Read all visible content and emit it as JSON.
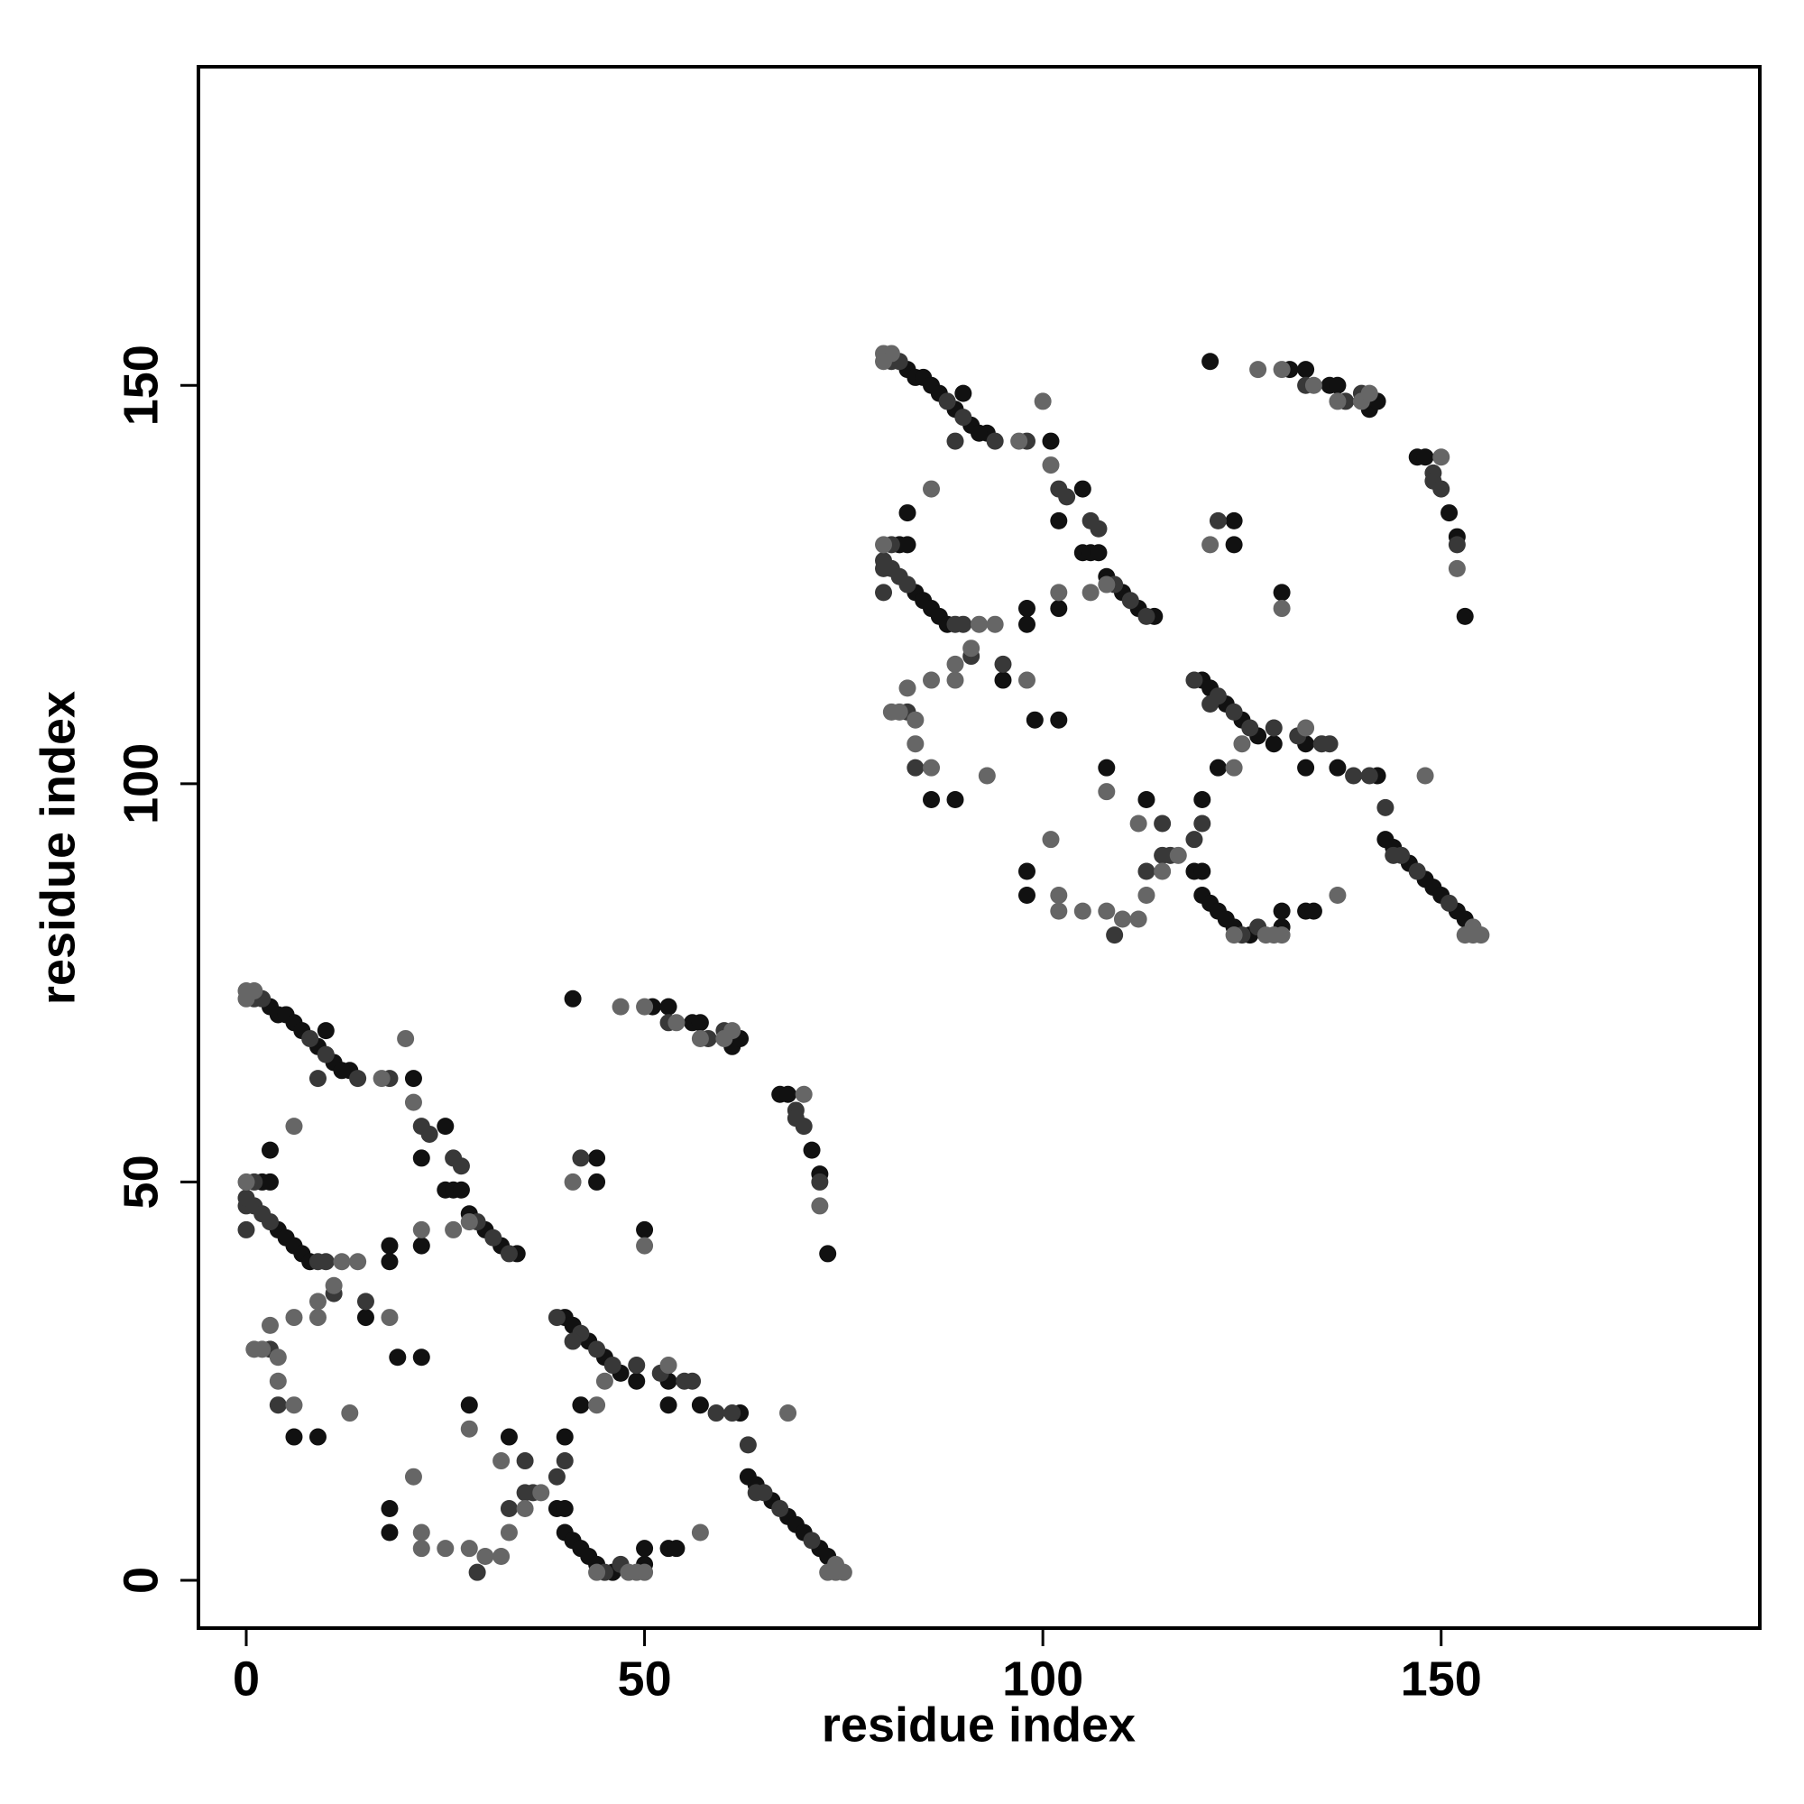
{
  "chart_data": {
    "type": "scatter",
    "xlabel": "residue index",
    "ylabel": "residue index",
    "xlim": [
      -6,
      190
    ],
    "ylim": [
      -6,
      190
    ],
    "xticks": [
      0,
      50,
      100,
      150
    ],
    "yticks": [
      0,
      50,
      100,
      150
    ],
    "grid": false,
    "series": [
      {
        "color": "#111111",
        "x": [
          3,
          4,
          5,
          6,
          7,
          9,
          11,
          13,
          3,
          2,
          3,
          4,
          5,
          6,
          7,
          8,
          18,
          18,
          22,
          6,
          9,
          18,
          18,
          28,
          33,
          19,
          22,
          15,
          22,
          25,
          26,
          27,
          28,
          30,
          32,
          34,
          40,
          41,
          43,
          45,
          47,
          49,
          53,
          57,
          62,
          63,
          64,
          66,
          68,
          69,
          70,
          72,
          73,
          39,
          40,
          40,
          41,
          42,
          43,
          44,
          46,
          50,
          50,
          53,
          54,
          40,
          42,
          44,
          44,
          50,
          41,
          51,
          53,
          56,
          57,
          61,
          62,
          67,
          68,
          71,
          72,
          73,
          25,
          21,
          53,
          10,
          12,
          83,
          84,
          85,
          86,
          87,
          89,
          91,
          93,
          83,
          82,
          83,
          84,
          85,
          86,
          87,
          88,
          98,
          98,
          102,
          86,
          89,
          98,
          98,
          108,
          113,
          99,
          102,
          95,
          102,
          105,
          106,
          107,
          108,
          110,
          112,
          114,
          120,
          121,
          123,
          125,
          127,
          129,
          133,
          137,
          142,
          143,
          144,
          146,
          148,
          149,
          150,
          152,
          153,
          119,
          120,
          120,
          121,
          122,
          123,
          124,
          126,
          130,
          130,
          133,
          134,
          120,
          122,
          124,
          124,
          130,
          121,
          131,
          133,
          136,
          137,
          141,
          142,
          147,
          148,
          151,
          152,
          153,
          105,
          101,
          133,
          90,
          92
        ],
        "values": [
          72,
          71,
          71,
          70,
          69,
          67,
          65,
          64,
          54,
          50,
          50,
          44,
          43,
          42,
          41,
          40,
          42,
          40,
          42,
          18,
          18,
          9,
          6,
          22,
          18,
          28,
          28,
          33,
          53,
          49,
          49,
          49,
          46,
          44,
          42,
          41,
          33,
          32,
          30,
          28,
          26,
          25,
          25,
          22,
          21,
          13,
          12,
          10,
          8,
          7,
          6,
          4,
          3,
          9,
          9,
          6,
          5,
          4,
          3,
          2,
          1,
          2,
          4,
          4,
          4,
          18,
          22,
          53,
          50,
          44,
          73,
          72,
          72,
          70,
          70,
          67,
          68,
          61,
          61,
          54,
          51,
          41,
          57,
          63,
          22,
          69,
          64,
          152,
          151,
          151,
          150,
          149,
          147,
          145,
          144,
          134,
          130,
          130,
          124,
          123,
          122,
          121,
          120,
          122,
          120,
          122,
          98,
          98,
          89,
          86,
          102,
          98,
          108,
          108,
          113,
          133,
          129,
          129,
          129,
          126,
          124,
          122,
          121,
          113,
          112,
          110,
          108,
          106,
          105,
          105,
          102,
          101,
          93,
          92,
          90,
          88,
          87,
          86,
          84,
          83,
          89,
          89,
          86,
          85,
          84,
          83,
          82,
          81,
          82,
          84,
          84,
          84,
          98,
          102,
          133,
          130,
          124,
          153,
          152,
          152,
          150,
          150,
          147,
          148,
          141,
          141,
          134,
          131,
          121,
          137,
          143,
          102,
          149,
          144
        ]
      },
      {
        "color": "#383838",
        "x": [
          1,
          2,
          8,
          10,
          14,
          9,
          18,
          0,
          1,
          2,
          3,
          9,
          10,
          1,
          22,
          23,
          26,
          27,
          29,
          31,
          33,
          39,
          42,
          44,
          46,
          49,
          52,
          55,
          56,
          59,
          61,
          63,
          64,
          65,
          67,
          71,
          45,
          47,
          3,
          4,
          11,
          15,
          29,
          33,
          35,
          35,
          36,
          39,
          40,
          53,
          58,
          60,
          69,
          69,
          70,
          72,
          0,
          0,
          42,
          41,
          81,
          82,
          88,
          90,
          94,
          89,
          98,
          80,
          81,
          82,
          83,
          89,
          90,
          81,
          102,
          103,
          106,
          107,
          109,
          111,
          113,
          119,
          122,
          124,
          126,
          129,
          132,
          135,
          136,
          139,
          141,
          143,
          144,
          145,
          147,
          151,
          125,
          127,
          83,
          84,
          91,
          95,
          109,
          113,
          115,
          115,
          116,
          119,
          120,
          133,
          138,
          140,
          149,
          149,
          150,
          152,
          80,
          80,
          122,
          121
        ],
        "values": [
          73,
          73,
          68,
          66,
          63,
          63,
          63,
          47,
          47,
          46,
          45,
          40,
          40,
          50,
          57,
          56,
          53,
          52,
          45,
          43,
          41,
          33,
          31,
          29,
          27,
          27,
          26,
          25,
          25,
          21,
          21,
          17,
          11,
          11,
          9,
          5,
          1,
          2,
          29,
          22,
          36,
          35,
          1,
          9,
          15,
          11,
          11,
          13,
          15,
          70,
          68,
          69,
          59,
          58,
          57,
          50,
          44,
          48,
          53,
          30,
          153,
          153,
          148,
          146,
          143,
          143,
          143,
          127,
          127,
          126,
          125,
          120,
          120,
          130,
          137,
          136,
          133,
          132,
          125,
          123,
          121,
          113,
          111,
          109,
          107,
          107,
          106,
          105,
          105,
          101,
          101,
          97,
          91,
          91,
          89,
          85,
          81,
          82,
          109,
          102,
          116,
          115,
          81,
          89,
          95,
          91,
          91,
          93,
          95,
          150,
          148,
          149,
          139,
          138,
          137,
          130,
          124,
          128,
          133,
          110
        ]
      },
      {
        "color": "#666666",
        "x": [
          0,
          1,
          0,
          74,
          75,
          74,
          73,
          6,
          20,
          21,
          17,
          12,
          14,
          22,
          0,
          1,
          2,
          3,
          4,
          4,
          6,
          6,
          9,
          9,
          11,
          13,
          18,
          21,
          22,
          22,
          25,
          28,
          28,
          30,
          32,
          32,
          33,
          35,
          37,
          48,
          50,
          57,
          41,
          44,
          50,
          53,
          68,
          47,
          50,
          54,
          57,
          60,
          61,
          70,
          72,
          45,
          44,
          49,
          26,
          28,
          80,
          81,
          80,
          154,
          155,
          154,
          153,
          86,
          100,
          101,
          97,
          92,
          94,
          102,
          80,
          81,
          82,
          83,
          84,
          84,
          86,
          86,
          89,
          89,
          91,
          93,
          98,
          101,
          102,
          102,
          105,
          108,
          108,
          110,
          112,
          112,
          113,
          115,
          117,
          128,
          130,
          137,
          121,
          124,
          130,
          133,
          148,
          127,
          130,
          134,
          137,
          140,
          141,
          150,
          152,
          125,
          124,
          129,
          106,
          108
        ],
        "values": [
          74,
          74,
          73,
          2,
          1,
          1,
          1,
          57,
          68,
          60,
          63,
          40,
          40,
          44,
          50,
          29,
          29,
          32,
          28,
          25,
          22,
          33,
          35,
          33,
          37,
          21,
          33,
          13,
          6,
          4,
          4,
          19,
          4,
          3,
          3,
          15,
          6,
          9,
          11,
          1,
          1,
          6,
          50,
          22,
          42,
          27,
          21,
          72,
          72,
          70,
          68,
          68,
          69,
          61,
          47,
          25,
          1,
          1,
          44,
          45,
          154,
          154,
          153,
          82,
          81,
          81,
          81,
          137,
          148,
          140,
          143,
          120,
          120,
          124,
          130,
          109,
          109,
          112,
          108,
          105,
          102,
          113,
          115,
          113,
          117,
          101,
          113,
          93,
          86,
          84,
          84,
          99,
          84,
          83,
          83,
          95,
          86,
          89,
          91,
          81,
          81,
          86,
          130,
          102,
          122,
          107,
          101,
          152,
          152,
          150,
          148,
          148,
          149,
          141,
          127,
          105,
          81,
          81,
          124,
          125
        ]
      }
    ]
  }
}
